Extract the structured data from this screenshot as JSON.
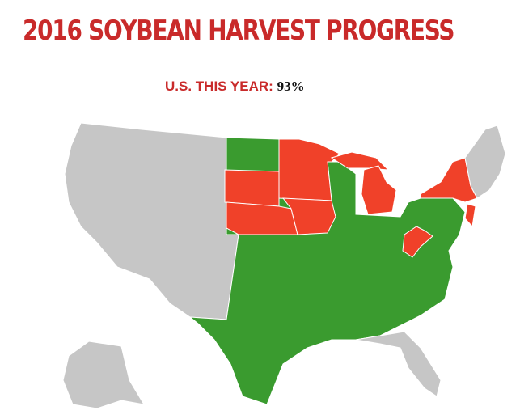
{
  "header": {
    "title": "2016 SOYBEAN HARVEST PROGRESS"
  },
  "summary": {
    "label": "U.S. THIS YEAR:",
    "value": "93%"
  }
}
